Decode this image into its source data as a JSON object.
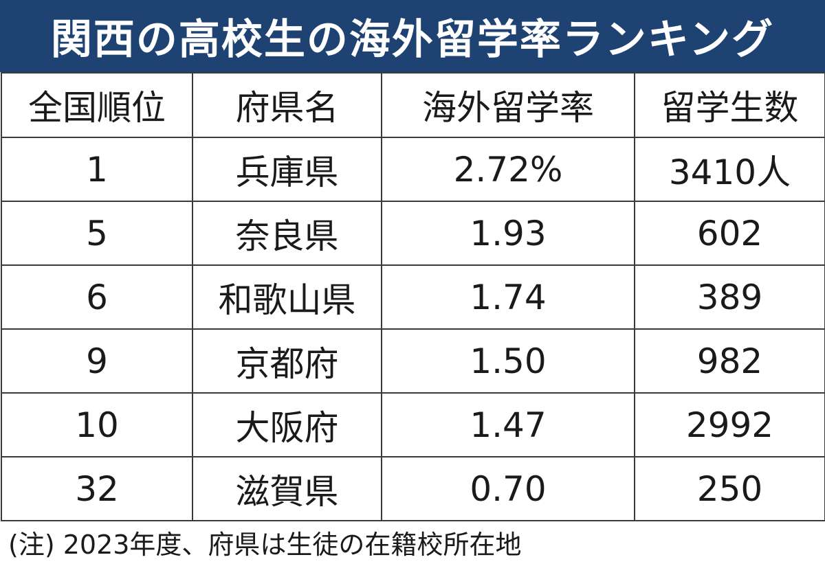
{
  "title": "関西の高校生の海外留学率ランキング",
  "colors": {
    "title_bg": "#1e4272",
    "title_text": "#ffffff",
    "grid": "#3a3a3a"
  },
  "chart_data": {
    "type": "table",
    "title": "関西の高校生の海外留学率ランキング",
    "columns": [
      "全国順位",
      "府県名",
      "海外留学率",
      "留学生数"
    ],
    "rows": [
      [
        "1",
        "兵庫県",
        "2.72%",
        "3410人"
      ],
      [
        "5",
        "奈良県",
        "1.93",
        "602"
      ],
      [
        "6",
        "和歌山県",
        "1.74",
        "389"
      ],
      [
        "9",
        "京都府",
        "1.50",
        "982"
      ],
      [
        "10",
        "大阪府",
        "1.47",
        "2992"
      ],
      [
        "32",
        "滋賀県",
        "0.70",
        "250"
      ]
    ],
    "note": "(注) 2023年度、府県は生徒の在籍校所在地"
  }
}
